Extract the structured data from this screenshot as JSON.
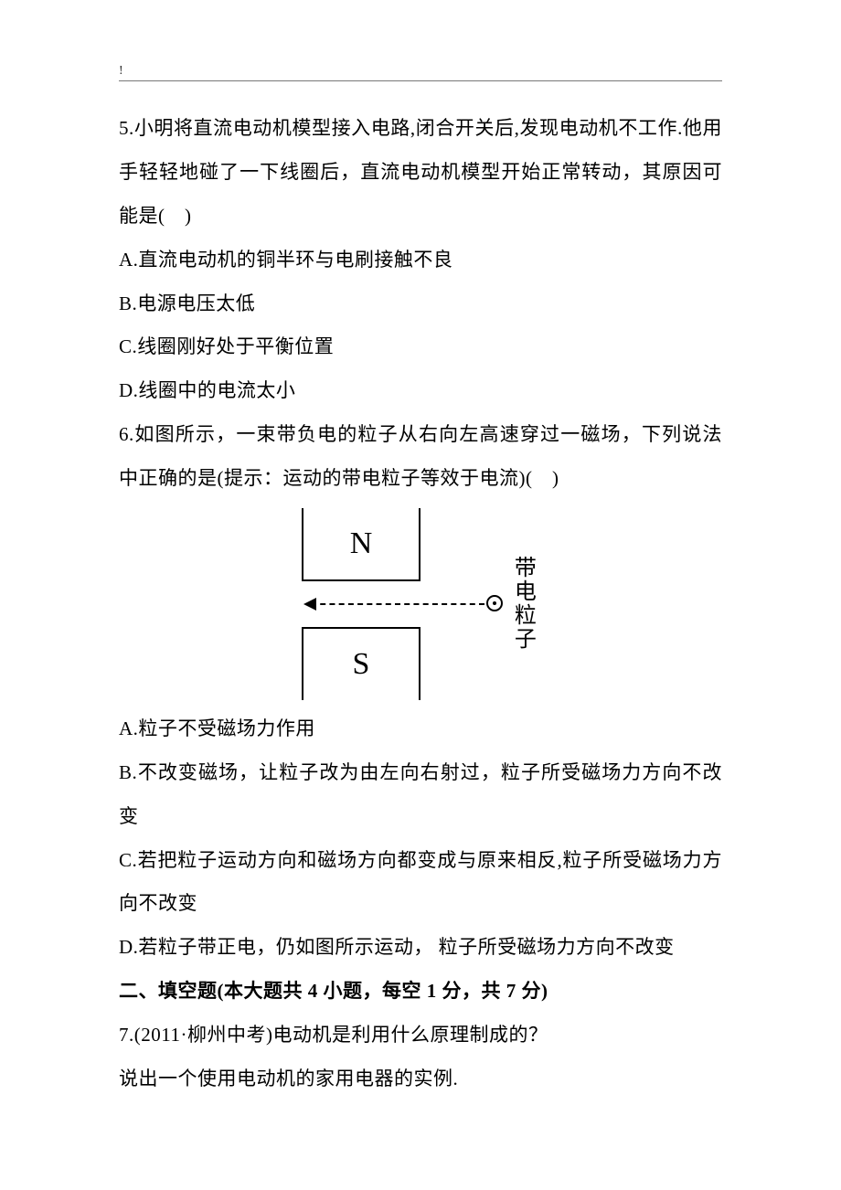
{
  "header": {
    "mark": "!"
  },
  "q5": {
    "text": "5.小明将直流电动机模型接入电路,闭合开关后,发现电动机不工作.他用手轻轻地碰了一下线圈后，直流电动机模型开始正常转动，其原因可能是(　)",
    "a": "A.直流电动机的铜半环与电刷接触不良",
    "b": "B.电源电压太低",
    "c": "C.线圈刚好处于平衡位置",
    "d": "D.线圈中的电流太小"
  },
  "q6": {
    "text": "6.如图所示，一束带负电的粒子从右向左高速穿过一磁场，下列说法中正确的是(提示：运动的带电粒子等效于电流)(　)",
    "diagram": {
      "n_label": "N",
      "s_label": "S",
      "particle_label": "带电粒子",
      "colors": {
        "stroke": "#000000",
        "bg": "#ffffff"
      }
    },
    "a": "A.粒子不受磁场力作用",
    "b": "B.不改变磁场，让粒子改为由左向右射过，粒子所受磁场力方向不改变",
    "c": "C.若把粒子运动方向和磁场方向都变成与原来相反,粒子所受磁场力方向不改变",
    "d": "D.若粒子带正电，仍如图所示运动， 粒子所受磁场力方向不改变"
  },
  "section2": {
    "heading": "二、填空题(本大题共 4 小题，每空 1 分，共 7 分)"
  },
  "q7": {
    "line1": "7.(2011·柳州中考)电动机是利用什么原理制成的？",
    "line2": "说出一个使用电动机的家用电器的实例."
  }
}
